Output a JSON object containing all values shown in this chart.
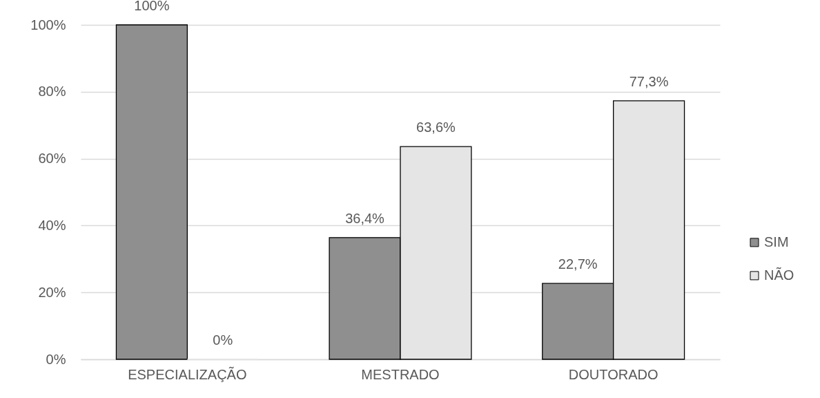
{
  "chart_data": {
    "type": "bar",
    "categories": [
      "ESPECIALIZAÇÃO",
      "MESTRADO",
      "DOUTORADO"
    ],
    "series": [
      {
        "name": "SIM",
        "color": "#8f8f8f",
        "values": [
          100,
          36.4,
          22.7
        ],
        "value_labels": [
          "100%",
          "36,4%",
          "22,7%"
        ]
      },
      {
        "name": "NÃO",
        "color": "#e5e5e5",
        "values": [
          0,
          63.6,
          77.3
        ],
        "value_labels": [
          "0%",
          "63,6%",
          "77,3%"
        ]
      }
    ],
    "ylim": [
      0,
      100
    ],
    "yticks": [
      {
        "value": 0,
        "label": "0%"
      },
      {
        "value": 20,
        "label": "20%"
      },
      {
        "value": 40,
        "label": "40%"
      },
      {
        "value": 60,
        "label": "60%"
      },
      {
        "value": 80,
        "label": "80%"
      },
      {
        "value": 100,
        "label": "100%"
      }
    ],
    "grid": "y",
    "legend": "right"
  }
}
